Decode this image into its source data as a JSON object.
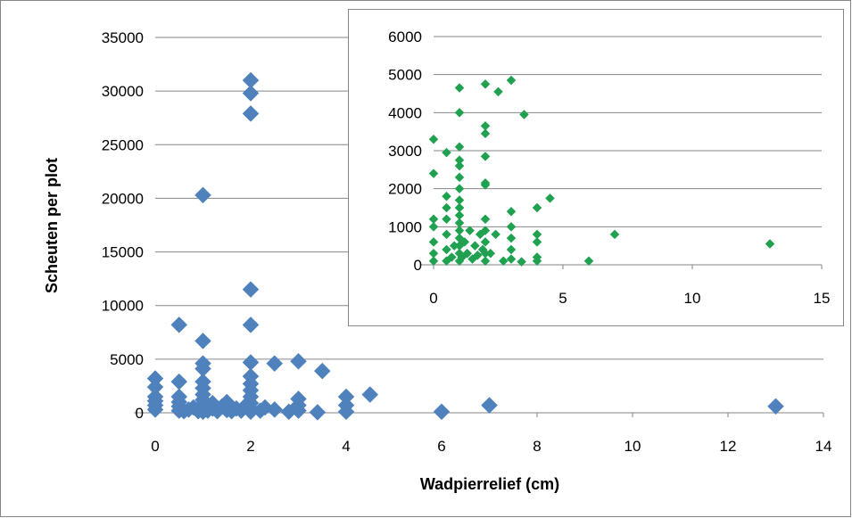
{
  "colors": {
    "main_marker": "#4F81BD",
    "inset_marker": "#1FA150",
    "grid": "#868686",
    "frame": "#868686"
  },
  "chart_data": [
    {
      "type": "scatter",
      "title": "",
      "xlabel": "Wadpierrelief (cm)",
      "ylabel": "Scheuten per plot",
      "xlim": [
        0,
        14
      ],
      "ylim": [
        0,
        35000
      ],
      "xticks": [
        "0",
        "2",
        "4",
        "6",
        "8",
        "10",
        "12",
        "14"
      ],
      "yticks": [
        "0",
        "5000",
        "10000",
        "15000",
        "20000",
        "25000",
        "30000",
        "35000"
      ],
      "grid": "horizontal",
      "legend": "none",
      "series": [
        {
          "marker": "diamond",
          "points": [
            [
              0,
              300
            ],
            [
              0,
              700
            ],
            [
              0,
              1100
            ],
            [
              0,
              1500
            ],
            [
              0,
              2400
            ],
            [
              0,
              3200
            ],
            [
              0.5,
              200
            ],
            [
              0.5,
              600
            ],
            [
              0.5,
              1000
            ],
            [
              0.5,
              1500
            ],
            [
              0.5,
              2900
            ],
            [
              0.5,
              8200
            ],
            [
              0.6,
              150
            ],
            [
              0.7,
              300
            ],
            [
              0.8,
              500
            ],
            [
              0.9,
              150
            ],
            [
              1,
              100
            ],
            [
              1,
              300
            ],
            [
              1,
              500
            ],
            [
              1,
              800
            ],
            [
              1,
              1200
            ],
            [
              1,
              1700
            ],
            [
              1,
              2300
            ],
            [
              1,
              2900
            ],
            [
              1,
              4100
            ],
            [
              1,
              4600
            ],
            [
              1,
              6700
            ],
            [
              1,
              20300
            ],
            [
              1.1,
              200
            ],
            [
              1.2,
              400
            ],
            [
              1.2,
              900
            ],
            [
              1.3,
              150
            ],
            [
              1.4,
              600
            ],
            [
              1.5,
              250
            ],
            [
              1.5,
              1000
            ],
            [
              1.6,
              150
            ],
            [
              1.7,
              400
            ],
            [
              1.8,
              200
            ],
            [
              1.9,
              700
            ],
            [
              2,
              100
            ],
            [
              2,
              400
            ],
            [
              2,
              900
            ],
            [
              2,
              1500
            ],
            [
              2,
              2100
            ],
            [
              2,
              2700
            ],
            [
              2,
              3400
            ],
            [
              2,
              4700
            ],
            [
              2,
              8200
            ],
            [
              2,
              11500
            ],
            [
              2,
              27900
            ],
            [
              2,
              29800
            ],
            [
              2,
              31000
            ],
            [
              2.2,
              200
            ],
            [
              2.3,
              500
            ],
            [
              2.5,
              300
            ],
            [
              2.5,
              4600
            ],
            [
              2.8,
              100
            ],
            [
              3,
              200
            ],
            [
              3,
              700
            ],
            [
              3,
              1300
            ],
            [
              3,
              4800
            ],
            [
              3.4,
              50
            ],
            [
              3.5,
              3900
            ],
            [
              4,
              100
            ],
            [
              4,
              700
            ],
            [
              4,
              1500
            ],
            [
              4.5,
              1700
            ],
            [
              6,
              100
            ],
            [
              7,
              700
            ],
            [
              13,
              600
            ]
          ]
        }
      ]
    },
    {
      "type": "scatter",
      "title": "",
      "xlabel": "",
      "ylabel": "",
      "xlim": [
        0,
        15
      ],
      "ylim": [
        0,
        6000
      ],
      "xticks": [
        "0",
        "5",
        "10",
        "15"
      ],
      "yticks": [
        "0",
        "1000",
        "2000",
        "3000",
        "4000",
        "5000",
        "6000"
      ],
      "grid": "horizontal",
      "legend": "none",
      "series": [
        {
          "marker": "diamond",
          "points": [
            [
              0,
              100
            ],
            [
              0,
              300
            ],
            [
              0,
              600
            ],
            [
              0,
              1000
            ],
            [
              0,
              1200
            ],
            [
              0,
              2400
            ],
            [
              0,
              3300
            ],
            [
              0.5,
              100
            ],
            [
              0.5,
              400
            ],
            [
              0.5,
              800
            ],
            [
              0.5,
              1200
            ],
            [
              0.5,
              1500
            ],
            [
              0.5,
              1800
            ],
            [
              0.5,
              2950
            ],
            [
              0.7,
              200
            ],
            [
              0.8,
              500
            ],
            [
              1,
              100
            ],
            [
              1,
              300
            ],
            [
              1,
              500
            ],
            [
              1,
              700
            ],
            [
              1,
              900
            ],
            [
              1,
              1100
            ],
            [
              1,
              1300
            ],
            [
              1,
              1500
            ],
            [
              1,
              1700
            ],
            [
              1,
              2000
            ],
            [
              1,
              2300
            ],
            [
              1,
              2600
            ],
            [
              1,
              2750
            ],
            [
              1,
              3100
            ],
            [
              1,
              4000
            ],
            [
              1,
              4650
            ],
            [
              1.1,
              200
            ],
            [
              1.2,
              600
            ],
            [
              1.3,
              300
            ],
            [
              1.4,
              900
            ],
            [
              1.5,
              150
            ],
            [
              1.6,
              500
            ],
            [
              1.7,
              250
            ],
            [
              1.8,
              800
            ],
            [
              1.9,
              400
            ],
            [
              2,
              100
            ],
            [
              2,
              300
            ],
            [
              2,
              600
            ],
            [
              2,
              900
            ],
            [
              2,
              1200
            ],
            [
              2,
              2100
            ],
            [
              2,
              2150
            ],
            [
              2,
              2850
            ],
            [
              2,
              3450
            ],
            [
              2,
              3650
            ],
            [
              2,
              4750
            ],
            [
              2.2,
              300
            ],
            [
              2.4,
              800
            ],
            [
              2.5,
              4550
            ],
            [
              2.7,
              100
            ],
            [
              3,
              150
            ],
            [
              3,
              400
            ],
            [
              3,
              700
            ],
            [
              3,
              1000
            ],
            [
              3,
              1400
            ],
            [
              3,
              4850
            ],
            [
              3.4,
              80
            ],
            [
              3.5,
              3950
            ],
            [
              4,
              100
            ],
            [
              4,
              200
            ],
            [
              4,
              600
            ],
            [
              4,
              800
            ],
            [
              4,
              1500
            ],
            [
              4.5,
              1750
            ],
            [
              6,
              100
            ],
            [
              7,
              800
            ],
            [
              13,
              550
            ]
          ]
        }
      ]
    }
  ]
}
